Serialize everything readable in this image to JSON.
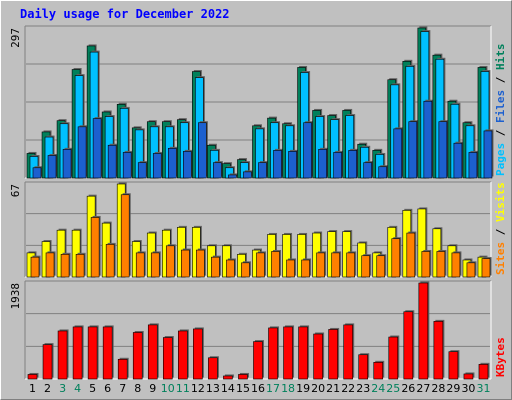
{
  "chart_data": {
    "title": "Daily usage for December 2022",
    "type": "bar",
    "days": [
      "1",
      "2",
      "3",
      "4",
      "5",
      "6",
      "7",
      "8",
      "9",
      "10",
      "11",
      "12",
      "13",
      "14",
      "15",
      "16",
      "17",
      "18",
      "19",
      "20",
      "21",
      "22",
      "23",
      "24",
      "25",
      "26",
      "27",
      "28",
      "29",
      "30",
      "31"
    ],
    "weekend_days": [
      "3",
      "4",
      "10",
      "11",
      "17",
      "18",
      "24",
      "25",
      "31"
    ],
    "colors": {
      "hits": "#00805b",
      "files": "#00c0ff",
      "pages": "#1c60cf",
      "visits": "#ffff00",
      "sites": "#ff8000",
      "kbytes": "#ff0000",
      "day_label": "#000000",
      "weekend_label": "#00805b"
    },
    "panels": [
      {
        "id": "hits",
        "max_label": "297",
        "max": 297,
        "legend": [
          {
            "label": "Pages",
            "color": "#00c0ff"
          },
          {
            "label": " / ",
            "color": "#000000"
          },
          {
            "label": "Files",
            "color": "#1c60cf"
          },
          {
            "label": " / ",
            "color": "#000000"
          },
          {
            "label": "Hits",
            "color": "#00805b"
          }
        ],
        "series": [
          {
            "name": "Hits",
            "values": [
              48,
              90,
              112,
              212,
              258,
              129,
              144,
              98,
              110,
              110,
              114,
              208,
              64,
              28,
              36,
              102,
              117,
              106,
              216,
              132,
              122,
              132,
              66,
              54,
              192,
              228,
              297,
              240,
              150,
              108,
              216
            ]
          },
          {
            "name": "Files",
            "values": [
              42,
              80,
              106,
              200,
              246,
              120,
              136,
              94,
              100,
              100,
              108,
              196,
              54,
              20,
              30,
              96,
              108,
              102,
              206,
              120,
              114,
              122,
              60,
              46,
              182,
              218,
              286,
              232,
              144,
              102,
              208
            ]
          },
          {
            "name": "Pages",
            "values": [
              20,
              44,
              56,
              100,
              116,
              64,
              50,
              30,
              48,
              58,
              52,
              108,
              30,
              6,
              12,
              30,
              54,
              52,
              108,
              56,
              50,
              54,
              30,
              22,
              96,
              110,
              150,
              110,
              68,
              50,
              92
            ]
          }
        ]
      },
      {
        "id": "visits",
        "max_label": "67",
        "max": 67,
        "legend": [
          {
            "label": "Sites",
            "color": "#ff8000"
          },
          {
            "label": " / ",
            "color": "#000000"
          },
          {
            "label": "Visits",
            "color": "#ffff00"
          }
        ],
        "series": [
          {
            "name": "Visits",
            "values": [
              17,
              25,
              33,
              33,
              57,
              38,
              67,
              25,
              31,
              33,
              35,
              35,
              22,
              22,
              16,
              19,
              30,
              30,
              30,
              31,
              32,
              32,
              24,
              17,
              35,
              47,
              48,
              34,
              22,
              12,
              14
            ]
          },
          {
            "name": "Sites",
            "values": [
              14,
              17,
              16,
              16,
              42,
              23,
              58,
              17,
              17,
              22,
              19,
              19,
              14,
              12,
              10,
              17,
              18,
              12,
              12,
              17,
              17,
              17,
              15,
              15,
              27,
              31,
              18,
              18,
              17,
              10,
              13
            ]
          }
        ]
      },
      {
        "id": "kbytes",
        "max_label": "1938",
        "max": 1938,
        "legend": [
          {
            "label": "KBytes",
            "color": "#ff0000"
          }
        ],
        "series": [
          {
            "name": "KBytes",
            "values": [
              90,
              680,
              950,
              1030,
              1030,
              1030,
              390,
              920,
              1070,
              820,
              950,
              990,
              420,
              60,
              90,
              740,
              1010,
              1030,
              1030,
              890,
              980,
              1070,
              480,
              330,
              830,
              1330,
              1938,
              1140,
              540,
              100,
              290
            ]
          }
        ]
      }
    ]
  }
}
